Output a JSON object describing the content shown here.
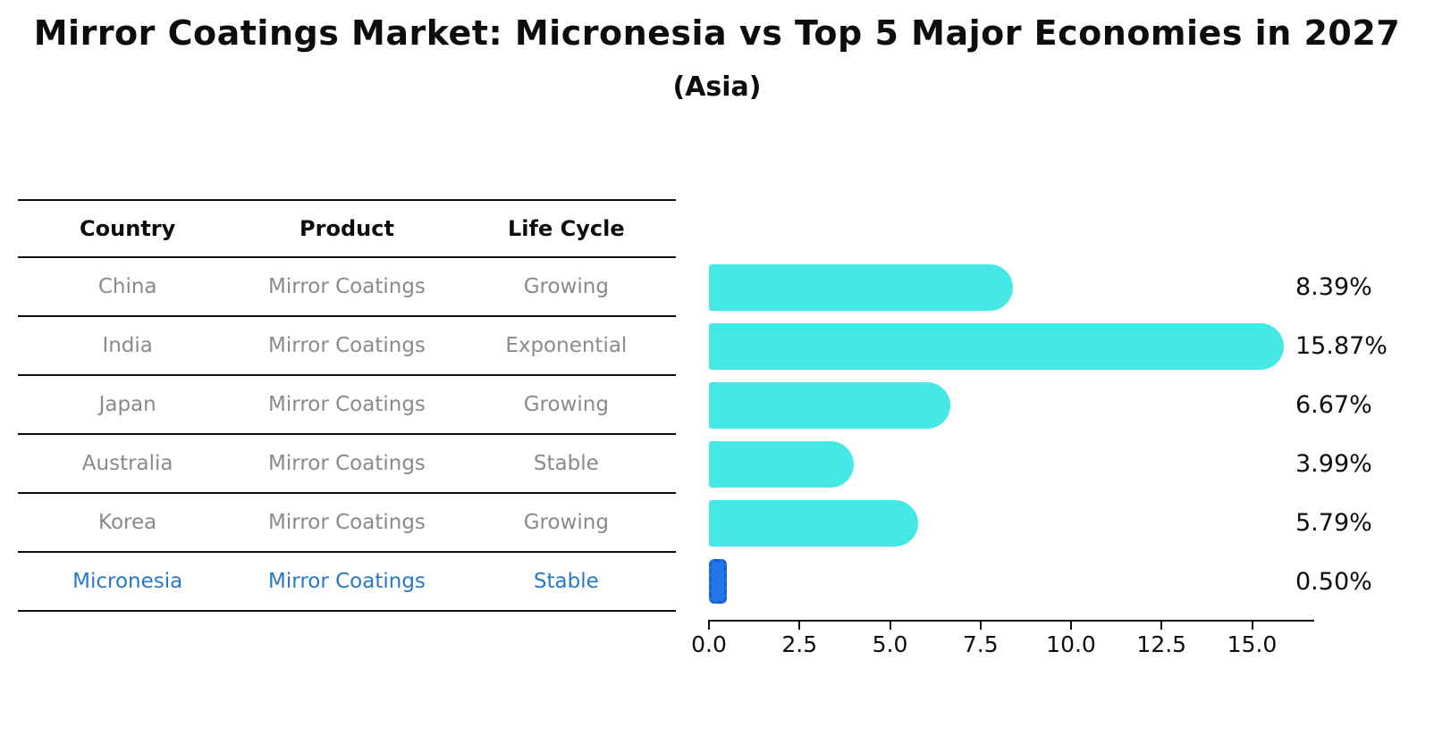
{
  "header": {
    "title": "Mirror Coatings Market: Micronesia vs Top 5 Major Economies in 2027",
    "subtitle": "(Asia)"
  },
  "table": {
    "columns": [
      "Country",
      "Product",
      "Life Cycle"
    ],
    "rows": [
      {
        "country": "China",
        "product": "Mirror Coatings",
        "life_cycle": "Growing",
        "highlight": false
      },
      {
        "country": "India",
        "product": "Mirror Coatings",
        "life_cycle": "Exponential",
        "highlight": false
      },
      {
        "country": "Japan",
        "product": "Mirror Coatings",
        "life_cycle": "Growing",
        "highlight": false
      },
      {
        "country": "Australia",
        "product": "Mirror Coatings",
        "life_cycle": "Stable",
        "highlight": false
      },
      {
        "country": "Korea",
        "product": "Mirror Coatings",
        "life_cycle": "Growing",
        "highlight": false
      },
      {
        "country": "Micronesia",
        "product": "Mirror Coatings",
        "life_cycle": "Stable",
        "highlight": true
      }
    ]
  },
  "chart_data": {
    "type": "bar",
    "orientation": "horizontal",
    "title": "Mirror Coatings Market: Micronesia vs Top 5 Major Economies in 2027 (Asia)",
    "categories": [
      "China",
      "India",
      "Japan",
      "Australia",
      "Korea",
      "Micronesia"
    ],
    "values": [
      8.39,
      15.87,
      6.67,
      3.99,
      5.79,
      0.5
    ],
    "value_labels": [
      "8.39%",
      "15.87%",
      "6.67%",
      "3.99%",
      "5.79%",
      "0.50%"
    ],
    "x_ticks": [
      "0.0",
      "2.5",
      "5.0",
      "7.5",
      "10.0",
      "12.5",
      "15.0"
    ],
    "xlim": [
      0,
      16.7
    ],
    "grid": false,
    "legend": false,
    "bar_color": "#45e8e4",
    "highlight_index": 5,
    "highlight_color": "#2276e8",
    "highlight_edge_color": "#1a5ed0",
    "highlight_text_color": "#2878c8"
  }
}
